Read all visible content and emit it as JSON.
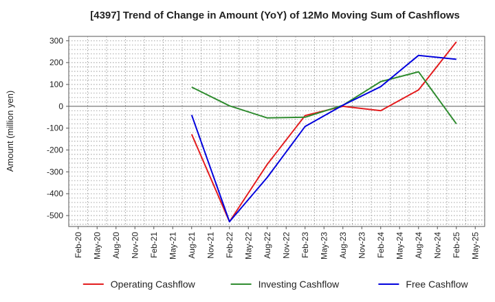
{
  "chart_data": {
    "type": "line",
    "title": "[4397]  Trend of Change in Amount (YoY) of 12Mo Moving Sum of Cashflows",
    "xlabel": "",
    "ylabel": "Amount (million yen)",
    "ylim": [
      -550,
      320
    ],
    "yticks": [
      300,
      200,
      100,
      0,
      -100,
      -200,
      -300,
      -400,
      -500
    ],
    "grid": true,
    "legend_position": "bottom",
    "categories": [
      "Feb-20",
      "May-20",
      "Aug-20",
      "Nov-20",
      "Feb-21",
      "May-21",
      "Aug-21",
      "Nov-21",
      "Feb-22",
      "May-22",
      "Aug-22",
      "Nov-22",
      "Feb-23",
      "May-23",
      "Aug-23",
      "Nov-23",
      "Feb-24",
      "May-24",
      "Aug-24",
      "Nov-24",
      "Feb-25",
      "May-25"
    ],
    "series": [
      {
        "name": "Operating Cashflow",
        "color": "#e31a1c",
        "values": [
          null,
          null,
          null,
          null,
          null,
          null,
          -128,
          null,
          -528,
          null,
          -265,
          null,
          -42,
          null,
          0,
          null,
          -20,
          null,
          75,
          null,
          295,
          null
        ]
      },
      {
        "name": "Investing Cashflow",
        "color": "#2e8b2e",
        "values": [
          null,
          null,
          null,
          null,
          null,
          null,
          88,
          null,
          2,
          null,
          -53,
          null,
          -50,
          null,
          5,
          null,
          113,
          null,
          158,
          null,
          -80,
          null
        ]
      },
      {
        "name": "Free Cashflow",
        "color": "#0000dd",
        "values": [
          null,
          null,
          null,
          null,
          null,
          null,
          -40,
          null,
          -528,
          null,
          -325,
          null,
          -92,
          null,
          5,
          null,
          90,
          null,
          233,
          null,
          215,
          null
        ]
      }
    ]
  }
}
